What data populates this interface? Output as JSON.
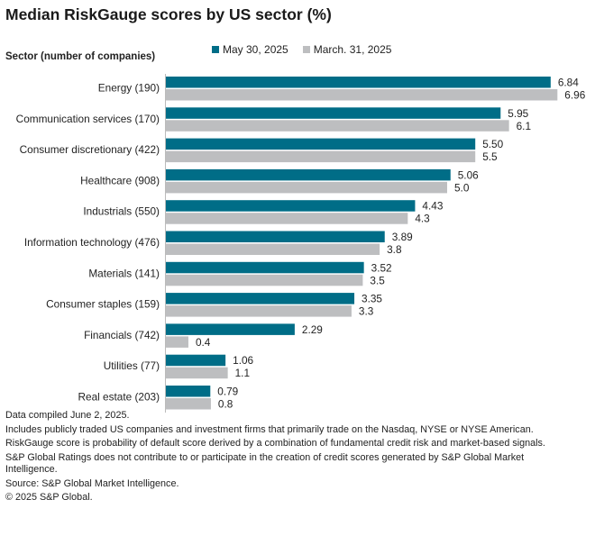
{
  "chart_data": {
    "type": "bar",
    "orientation": "horizontal",
    "title": "Median RiskGauge scores by US sector (%)",
    "ylabel": "Sector (number of companies)",
    "categories": [
      "Energy (190)",
      "Communication services (170)",
      "Consumer discretionary (422)",
      "Healthcare (908)",
      "Industrials (550)",
      "Information technology (476)",
      "Materials (141)",
      "Consumer staples (159)",
      "Financials (742)",
      "Utilities (77)",
      "Real estate (203)"
    ],
    "series": [
      {
        "name": "May 30, 2025",
        "color": "#006d87",
        "values": [
          6.84,
          5.95,
          5.5,
          5.06,
          4.43,
          3.89,
          3.52,
          3.35,
          2.29,
          1.06,
          0.79
        ],
        "labels": [
          "6.84",
          "5.95",
          "5.50",
          "5.06",
          "4.43",
          "3.89",
          "3.52",
          "3.35",
          "2.29",
          "1.06",
          "0.79"
        ]
      },
      {
        "name": "March. 31, 2025",
        "color": "#bdbec0",
        "values": [
          6.96,
          6.1,
          5.5,
          5.0,
          4.3,
          3.8,
          3.5,
          3.3,
          0.4,
          1.1,
          0.8
        ],
        "labels": [
          "6.96",
          "6.1",
          "5.5",
          "5.0",
          "4.3",
          "3.8",
          "3.5",
          "3.3",
          "0.4",
          "1.1",
          "0.8"
        ]
      }
    ],
    "xlim": [
      0,
      7
    ],
    "grid": false,
    "legend_position": "top"
  },
  "notes": [
    "Data compiled June 2, 2025.",
    "Includes publicly traded US companies and investment firms that primarily trade on the Nasdaq, NYSE or NYSE American.",
    "RiskGauge score is probability of default score derived by a combination of fundamental credit risk and market-based signals.",
    "S&P Global Ratings does not contribute to or participate in the creation of credit scores generated by S&P Global Market Intelligence.",
    "Source: S&P Global Market Intelligence.",
    "© 2025 S&P Global."
  ]
}
